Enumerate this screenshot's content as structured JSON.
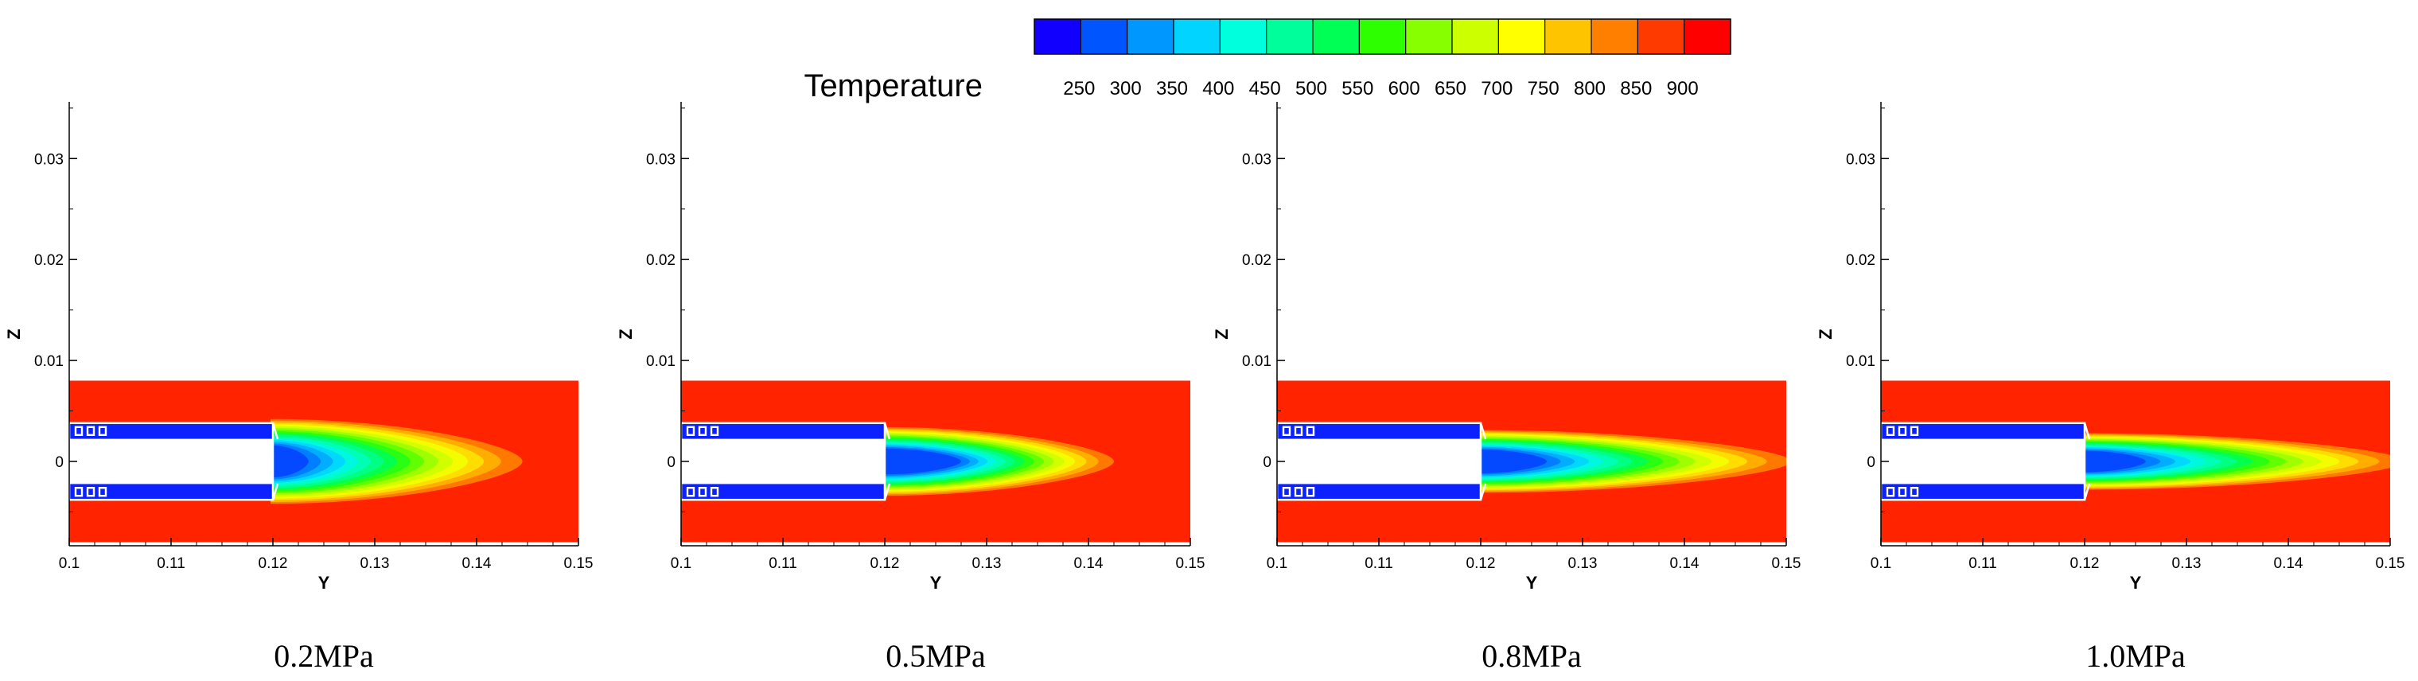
{
  "chart_data": {
    "type": "contour",
    "colorbar": {
      "title": "Temperature",
      "levels": [
        250,
        300,
        350,
        400,
        450,
        500,
        550,
        600,
        650,
        700,
        750,
        800,
        850,
        900
      ],
      "tick_labels": [
        "250",
        "300",
        "350",
        "400",
        "450",
        "500",
        "550",
        "600",
        "650",
        "700",
        "750",
        "800",
        "850",
        "900"
      ],
      "range": [
        230,
        930
      ],
      "colors": [
        "#1200ff",
        "#0055ff",
        "#0097ff",
        "#00d4ff",
        "#00ffdd",
        "#00ff9a",
        "#00ff55",
        "#2dff00",
        "#88ff00",
        "#ccff00",
        "#ffff00",
        "#ffc400",
        "#ff8000",
        "#ff3a00",
        "#ff0000"
      ]
    },
    "axes": {
      "xlabel": "Y",
      "ylabel": "Z",
      "xlim": [
        0.1,
        0.15
      ],
      "ylim": [
        -0.008,
        0.036
      ],
      "xticks": [
        0.1,
        0.11,
        0.12,
        0.13,
        0.14,
        0.15
      ],
      "xtick_labels": [
        "0.1",
        "0.11",
        "0.12",
        "0.13",
        "0.14",
        "0.15"
      ],
      "yticks": [
        0,
        0.01,
        0.02,
        0.03
      ],
      "ytick_labels": [
        "0",
        "0.01",
        "0.02",
        "0.03"
      ]
    },
    "domain": {
      "y_range": [
        0.1,
        0.15
      ],
      "z_half_height": 0.008,
      "injector_end_y": 0.12,
      "inner_channel_half_height": 0.0022,
      "wall_outer_half_height": 0.0038,
      "ambient_temperature": 900,
      "injector_temperature": 250
    },
    "panels": [
      {
        "caption": "0.2MPa",
        "pressure_mpa": 0.2,
        "cold_core_end_y": 0.1235,
        "warm_plume_end_y": 0.1445,
        "plume_half_height": 0.0042
      },
      {
        "caption": "0.5MPa",
        "pressure_mpa": 0.5,
        "cold_core_end_y": 0.1275,
        "warm_plume_end_y": 0.1425,
        "plume_half_height": 0.0034
      },
      {
        "caption": "0.8MPa",
        "pressure_mpa": 0.8,
        "cold_core_end_y": 0.1265,
        "warm_plume_end_y": 0.1505,
        "plume_half_height": 0.0031
      },
      {
        "caption": "1.0MPa",
        "pressure_mpa": 1.0,
        "cold_core_end_y": 0.126,
        "warm_plume_end_y": 0.1515,
        "plume_half_height": 0.0028
      }
    ]
  }
}
